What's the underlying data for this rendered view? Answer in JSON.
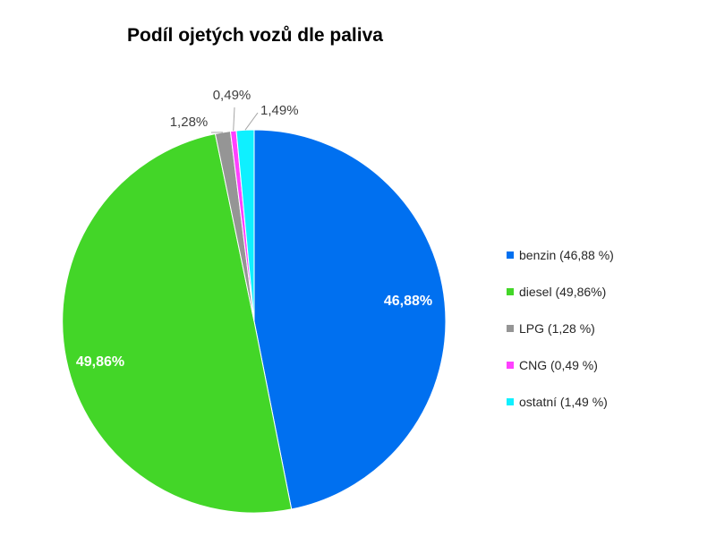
{
  "chart_data": {
    "type": "pie",
    "title": "Podíl ojetých vozů dle paliva",
    "legend_position": "right",
    "slices": [
      {
        "label": "benzin",
        "legend": "benzin (46,88 %)",
        "value": 46.88,
        "data_label": "46,88%",
        "color": "#0070F0"
      },
      {
        "label": "diesel",
        "legend": "diesel (49,86%)",
        "value": 49.86,
        "data_label": "49,86%",
        "color": "#43D628"
      },
      {
        "label": "LPG",
        "legend": "LPG (1,28 %)",
        "value": 1.28,
        "data_label": "1,28%",
        "color": "#959595"
      },
      {
        "label": "CNG",
        "legend": "CNG (0,49 %)",
        "value": 0.49,
        "data_label": "0,49%",
        "color": "#FF40FF"
      },
      {
        "label": "ostatní",
        "legend": "ostatní (1,49 %)",
        "value": 1.49,
        "data_label": "1,49%",
        "color": "#0FF0FF"
      }
    ]
  }
}
